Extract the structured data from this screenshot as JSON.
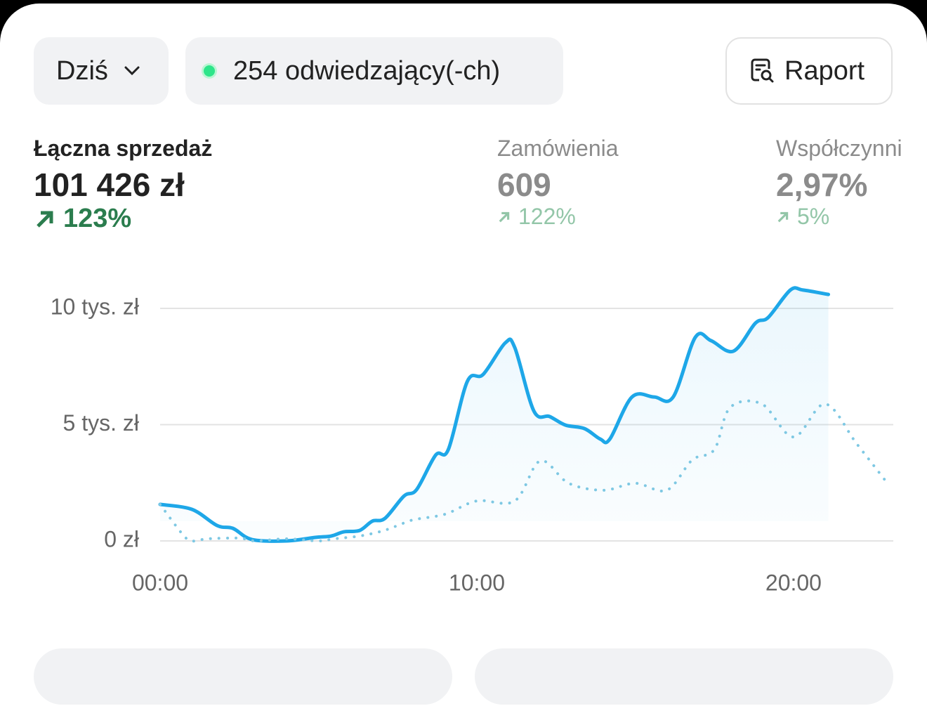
{
  "toolbar": {
    "period": "Dziś",
    "visitors": "254 odwiedzający(-ch)",
    "report": "Raport"
  },
  "metrics": [
    {
      "label": "Łączna sprzedaż",
      "value": "101 426 zł",
      "change": "123%"
    },
    {
      "label": "Zamówienia",
      "value": "609",
      "change": "122%"
    },
    {
      "label": "Współczynni",
      "value": "2,97%",
      "change": "5%"
    }
  ],
  "chart_data": {
    "type": "line",
    "xlim": [
      0,
      23.15
    ],
    "xticks": [
      {
        "value": 0,
        "label": "00:00"
      },
      {
        "value": 10,
        "label": "10:00"
      },
      {
        "value": 20,
        "label": "20:00"
      }
    ],
    "ylim": [
      0,
      10000
    ],
    "yticks": [
      {
        "value": 0,
        "label": "0 zł"
      },
      {
        "value": 5000,
        "label": "5 tys. zł"
      },
      {
        "value": 10000,
        "label": "10 tys. zł"
      }
    ],
    "grid": true,
    "series": [
      {
        "color": "#1ea7e8",
        "style": "solid",
        "area": true,
        "x": [
          0,
          1,
          1.8,
          2.3,
          2.9,
          4,
          4.9,
          5.4,
          5.8,
          6.3,
          6.7,
          7.1,
          7.7,
          8.1,
          8.7,
          9.1,
          9.7,
          10.2,
          10.9,
          11.2,
          11.8,
          12.3,
          12.8,
          13.4,
          13.9,
          14.2,
          14.9,
          15.6,
          16.2,
          16.9,
          17.4,
          18.1,
          18.8,
          19.2,
          19.9,
          20.3,
          21.1
        ],
        "values": [
          1570,
          1360,
          660,
          540,
          60,
          0,
          150,
          210,
          390,
          450,
          850,
          970,
          1930,
          2210,
          3690,
          3930,
          6860,
          7160,
          8520,
          8310,
          5590,
          5350,
          4980,
          4830,
          4380,
          4380,
          6190,
          6190,
          6190,
          8760,
          8610,
          8160,
          9370,
          9610,
          10790,
          10790,
          10600
        ]
      },
      {
        "color": "#7ec8e3",
        "style": "dotted",
        "area": false,
        "x": [
          0,
          0.7,
          1,
          1.5,
          2.5,
          3,
          4,
          5,
          5.5,
          6.3,
          7,
          7.5,
          8,
          9,
          10,
          11.2,
          12,
          12.9,
          14,
          15,
          16,
          16.8,
          17.5,
          18,
          19,
          20,
          21,
          22,
          23
        ],
        "values": [
          1570,
          300,
          0,
          90,
          120,
          0,
          90,
          0,
          90,
          210,
          420,
          660,
          910,
          1150,
          1720,
          1720,
          3440,
          2480,
          2180,
          2480,
          2180,
          3480,
          3930,
          5740,
          5890,
          4470,
          5890,
          4170,
          2420
        ]
      }
    ]
  }
}
